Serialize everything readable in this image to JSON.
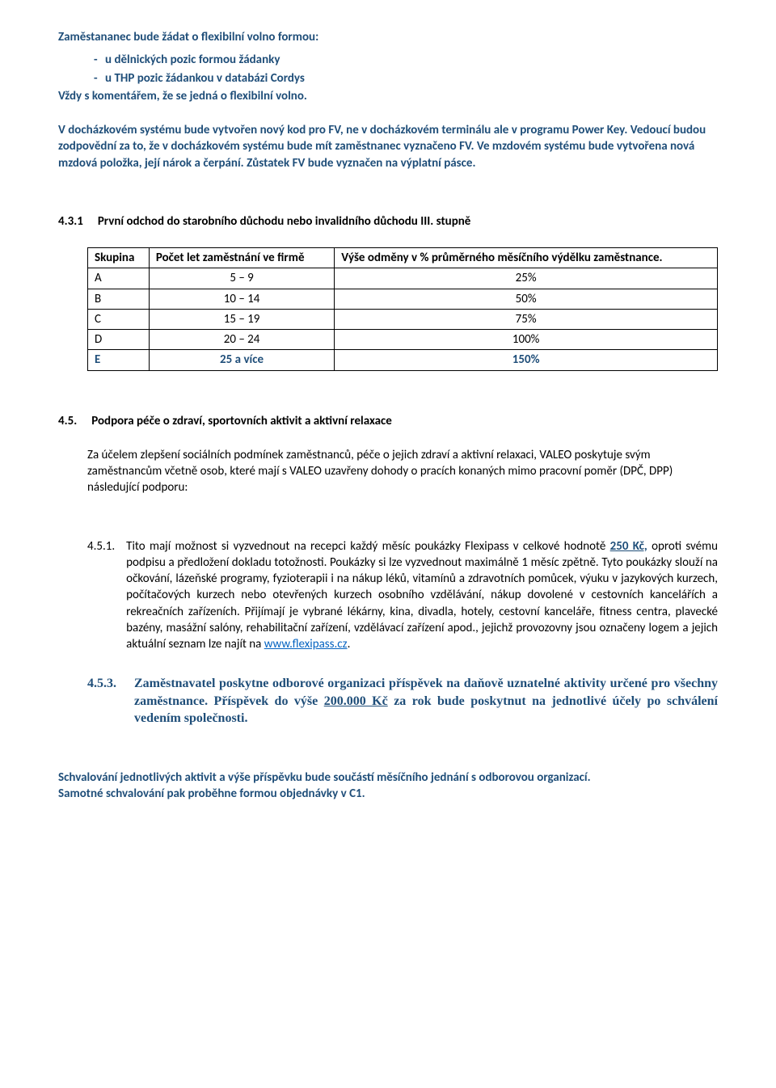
{
  "intro": {
    "title": "Zaměstananec  bude žádat o flexibilní volno formou:",
    "bullets": [
      "u dělnických pozic formou žádanky",
      "u THP pozic žádankou v databázi Cordys"
    ],
    "line2": "Vždy s  komentářem, že se jedná o flexibilní volno.",
    "para2_a": "V docházkovém systému bude vytvořen nový kod pro FV, ne v docházkovém terminálu ale v programu Power ",
    "para2_b": "Key",
    "para2_c": ". Vedoucí budou zodpovědní za to, že v docházkovém systému bude mít zaměstnanec vyznačeno FV. Ve mzdovém systému bude vytvořena nová mzdová položka, její nárok a čerpání. Zůstatek FV bude vyznačen na výplatní pásce."
  },
  "s431": {
    "num": "4.3.1",
    "title": "První odchod do starobního důchodu nebo  invalidního důchodu III. stupně",
    "table": {
      "headers": [
        "Skupina",
        "Počet let zaměstnání ve firmě",
        "Výše odměny v % průměrného měsíčního výdělku zaměstnance."
      ],
      "rows": [
        {
          "cells": [
            "A",
            "5 – 9",
            "25%"
          ],
          "highlight": false
        },
        {
          "cells": [
            "B",
            "10 – 14",
            "50%"
          ],
          "highlight": false
        },
        {
          "cells": [
            "C",
            "15 – 19",
            "75%"
          ],
          "highlight": false
        },
        {
          "cells": [
            "D",
            "20 – 24",
            "100%"
          ],
          "highlight": false
        },
        {
          "cells": [
            "E",
            "25 a více",
            "150%"
          ],
          "highlight": true
        }
      ]
    }
  },
  "s45": {
    "num": "4.5.",
    "title": "Podpora péče o zdraví, sportovních aktivit a aktivní relaxace",
    "para": "Za účelem zlepšení sociálních podmínek zaměstnanců, péče o jejich zdraví  a aktivní relaxaci, VALEO poskytuje svým zaměstnancům včetně osob, které mají s VALEO uzavřeny dohody o pracích konaných mimo pracovní poměr (DPČ, DPP) následující podporu:"
  },
  "s451": {
    "num": "4.5.1.",
    "body_a": "Tito mají možnost si vyzvednout na recepci každý měsíc poukázky Flexipass  v celkové hodnotě ",
    "amount": "250 Kč,",
    "body_b": " oproti svému podpisu a předložení dokladu totožnosti. Poukázky si lze vyzvednout maximálně 1 měsíc zpětně. Tyto poukázky slouží na očkování, lázeňské programy, fyzioterapii i na nákup léků, vitamínů a zdravotních pomůcek, výuku v jazykových kurzech, počítačových kurzech nebo otevřených kurzech osobního vzdělávání, nákup dovolené v cestovních kancelářích a rekreačních zařízeních. Přijímají je vybrané lékárny, kina, divadla, hotely, cestovní kanceláře, fitness centra, plavecké bazény, masážní salóny, rehabilitační zařízení, vzdělávací zařízení apod., jejichž provozovny jsou označeny logem a jejich aktuální seznam lze najít  na ",
    "link_text": "www.flexipass.cz",
    "tail": "."
  },
  "s453": {
    "num": "4.5.3.",
    "body_a": "Zaměstnavatel poskytne odborové organizaci příspěvek na daňově uznatelné aktivity určené pro všechny zaměstnance. Příspěvek do výše ",
    "amount": "200.000 Kč",
    "body_b": " za rok bude poskytnut na jednotlivé účely po schválení vedením společnosti."
  },
  "footer": {
    "line1": "Schvalování jednotlivých aktivit a výše příspěvku bude součástí měsíčního jednání s odborovou organizací.",
    "line2": "Samotné schvalování pak proběhne formou objednávky v C1."
  }
}
